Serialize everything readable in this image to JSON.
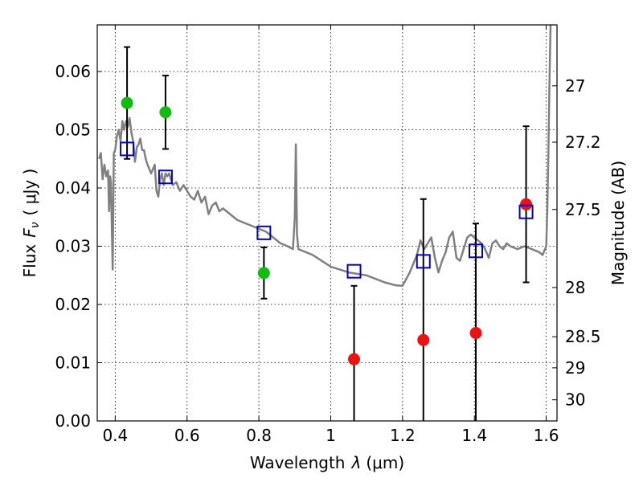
{
  "chart_data": {
    "type": "scatter",
    "xlabel_prefix": "Wavelength",
    "xlabel_symbol": "λ",
    "xlabel_unit": "(μm)",
    "ylabel_prefix": "Flux",
    "ylabel_symbol": "F",
    "ylabel_subscript": "ν",
    "ylabel_unit": "( μJy )",
    "ylabel_right": "Magnitude (AB)",
    "xlim": [
      0.35,
      1.63
    ],
    "ylim": [
      0.0,
      0.068
    ],
    "grid": true,
    "x_ticks": [
      {
        "value": 0.4,
        "label": "0.4"
      },
      {
        "value": 0.6,
        "label": "0.6"
      },
      {
        "value": 0.8,
        "label": "0.8"
      },
      {
        "value": 1.0,
        "label": "1"
      },
      {
        "value": 1.2,
        "label": "1.2"
      },
      {
        "value": 1.4,
        "label": "1.4"
      },
      {
        "value": 1.6,
        "label": "1.6"
      }
    ],
    "y_ticks": [
      {
        "value": 0.0,
        "label": "0.00"
      },
      {
        "value": 0.01,
        "label": "0.01"
      },
      {
        "value": 0.02,
        "label": "0.02"
      },
      {
        "value": 0.03,
        "label": "0.03"
      },
      {
        "value": 0.04,
        "label": "0.04"
      },
      {
        "value": 0.05,
        "label": "0.05"
      },
      {
        "value": 0.06,
        "label": "0.06"
      }
    ],
    "right_ticks": [
      {
        "magnitude": 27.0,
        "label": "27"
      },
      {
        "magnitude": 27.2,
        "label": "27.2"
      },
      {
        "magnitude": 27.5,
        "label": "27.5"
      },
      {
        "magnitude": 28.0,
        "label": "28"
      },
      {
        "magnitude": 28.5,
        "label": "28.5"
      },
      {
        "magnitude": 29.0,
        "label": "29"
      },
      {
        "magnitude": 30.0,
        "label": "30"
      }
    ],
    "colors": {
      "template": "#808080",
      "model": "#0000cc",
      "green": "#11bb11",
      "red": "#ee1111",
      "errorbar": "#000000"
    },
    "template_spectrum": {
      "x": [
        0.355,
        0.36,
        0.365,
        0.37,
        0.375,
        0.38,
        0.383,
        0.386,
        0.388,
        0.39,
        0.393,
        0.396,
        0.4,
        0.405,
        0.41,
        0.415,
        0.42,
        0.425,
        0.43,
        0.435,
        0.44,
        0.445,
        0.45,
        0.455,
        0.46,
        0.465,
        0.47,
        0.475,
        0.48,
        0.485,
        0.49,
        0.5,
        0.51,
        0.515,
        0.52,
        0.525,
        0.53,
        0.535,
        0.54,
        0.545,
        0.55,
        0.56,
        0.57,
        0.58,
        0.59,
        0.6,
        0.61,
        0.62,
        0.63,
        0.64,
        0.65,
        0.66,
        0.67,
        0.68,
        0.69,
        0.7,
        0.72,
        0.74,
        0.76,
        0.78,
        0.8,
        0.82,
        0.84,
        0.86,
        0.88,
        0.895,
        0.9,
        0.903,
        0.906,
        0.91,
        0.95,
        1.0,
        1.05,
        1.1,
        1.15,
        1.18,
        1.2,
        1.22,
        1.24,
        1.25,
        1.26,
        1.27,
        1.28,
        1.29,
        1.3,
        1.31,
        1.32,
        1.33,
        1.34,
        1.35,
        1.36,
        1.37,
        1.38,
        1.39,
        1.4,
        1.41,
        1.42,
        1.43,
        1.44,
        1.45,
        1.46,
        1.47,
        1.48,
        1.49,
        1.5,
        1.52,
        1.54,
        1.56,
        1.58,
        1.59,
        1.6,
        1.603,
        1.606,
        1.609,
        1.612
      ],
      "y": [
        0.045,
        0.046,
        0.0415,
        0.044,
        0.042,
        0.043,
        0.036,
        0.042,
        0.041,
        0.035,
        0.026,
        0.046,
        0.0465,
        0.049,
        0.05,
        0.048,
        0.0515,
        0.05,
        0.0515,
        0.0505,
        0.052,
        0.0495,
        0.048,
        0.0445,
        0.047,
        0.0475,
        0.0485,
        0.0465,
        0.0465,
        0.045,
        0.044,
        0.0425,
        0.044,
        0.0395,
        0.0385,
        0.0415,
        0.0425,
        0.0405,
        0.0425,
        0.042,
        0.0425,
        0.0405,
        0.041,
        0.0395,
        0.0405,
        0.0395,
        0.0385,
        0.038,
        0.0395,
        0.0375,
        0.0385,
        0.0355,
        0.037,
        0.0375,
        0.036,
        0.0365,
        0.0355,
        0.0345,
        0.034,
        0.0335,
        0.033,
        0.0325,
        0.0315,
        0.0305,
        0.03,
        0.0295,
        0.035,
        0.0475,
        0.032,
        0.0295,
        0.0285,
        0.0265,
        0.0255,
        0.025,
        0.0238,
        0.0233,
        0.0232,
        0.0255,
        0.0285,
        0.031,
        0.0295,
        0.0305,
        0.0315,
        0.028,
        0.0255,
        0.0275,
        0.029,
        0.0315,
        0.0325,
        0.028,
        0.0275,
        0.0295,
        0.0315,
        0.032,
        0.0315,
        0.031,
        0.0305,
        0.0295,
        0.028,
        0.0305,
        0.031,
        0.03,
        0.0295,
        0.0305,
        0.03,
        0.0295,
        0.03,
        0.0295,
        0.029,
        0.0285,
        0.03,
        0.036,
        0.046,
        0.058,
        0.068
      ]
    },
    "model_points": {
      "x": [
        0.433,
        0.54,
        0.814,
        1.065,
        1.258,
        1.404,
        1.544
      ],
      "y": [
        0.0467,
        0.0419,
        0.0323,
        0.0257,
        0.0274,
        0.0292,
        0.0359
      ]
    },
    "green_points": {
      "x": [
        0.433,
        0.54,
        0.814
      ],
      "y": [
        0.0546,
        0.053,
        0.0254
      ],
      "yerr": [
        0.0096,
        0.0063,
        0.0044
      ]
    },
    "red_points": {
      "x": [
        1.065,
        1.258,
        1.404,
        1.544
      ],
      "y": [
        0.0106,
        0.0139,
        0.0151,
        0.0372
      ],
      "yerr": [
        0.0126,
        0.0242,
        0.0188,
        0.0134
      ]
    }
  }
}
